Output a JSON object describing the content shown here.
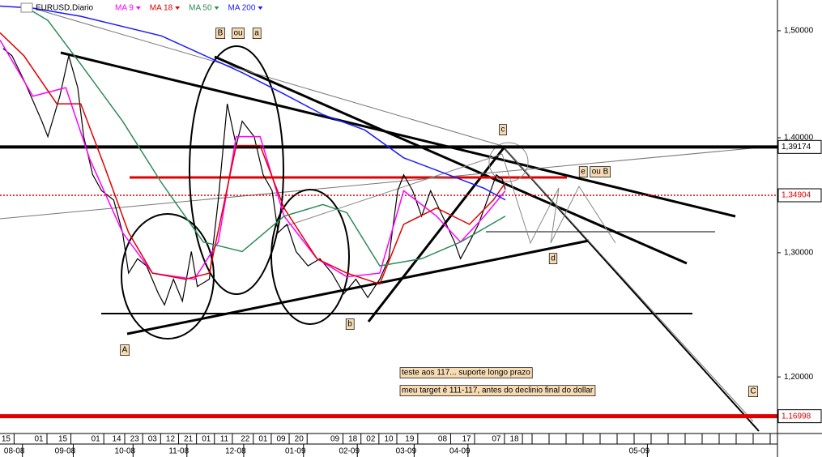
{
  "chart_data": {
    "type": "line",
    "title": "EURUSD,Diario",
    "log_scale": true,
    "xlim": [
      0,
      260
    ],
    "ylim": [
      1.157,
      1.53
    ],
    "yticks": [
      {
        "value": 1.5,
        "label": "1,50000"
      },
      {
        "value": 1.4,
        "label": "1,40000"
      },
      {
        "value": 1.3,
        "label": "1,30000"
      },
      {
        "value": 1.2,
        "label": "1,20000"
      }
    ],
    "xticks": [
      {
        "value": 2,
        "label": "15"
      },
      {
        "value": 13,
        "label": "01"
      },
      {
        "value": 21,
        "label": "15"
      },
      {
        "value": 32,
        "label": "01"
      },
      {
        "value": 39,
        "label": "14"
      },
      {
        "value": 45,
        "label": "23"
      },
      {
        "value": 51,
        "label": "03"
      },
      {
        "value": 57,
        "label": "12"
      },
      {
        "value": 63,
        "label": "21"
      },
      {
        "value": 69,
        "label": "01"
      },
      {
        "value": 75,
        "label": "11"
      },
      {
        "value": 82,
        "label": "22"
      },
      {
        "value": 88,
        "label": "01"
      },
      {
        "value": 94,
        "label": "09"
      },
      {
        "value": 100,
        "label": "20"
      },
      {
        "value": 112,
        "label": "09"
      },
      {
        "value": 118,
        "label": "18"
      },
      {
        "value": 124,
        "label": "02"
      },
      {
        "value": 130,
        "label": "10"
      },
      {
        "value": 137,
        "label": "19"
      },
      {
        "value": 148,
        "label": "08"
      },
      {
        "value": 156,
        "label": "17"
      },
      {
        "value": 166,
        "label": "07"
      },
      {
        "value": 172,
        "label": "18"
      }
    ],
    "month_ticks": [
      {
        "value": 1,
        "label": "08-08"
      },
      {
        "value": 18,
        "label": "09-08"
      },
      {
        "value": 38,
        "label": "10-08"
      },
      {
        "value": 56,
        "label": "11-08"
      },
      {
        "value": 75,
        "label": "12-08"
      },
      {
        "value": 95,
        "label": "01-09"
      },
      {
        "value": 113,
        "label": "02-09"
      },
      {
        "value": 132,
        "label": "03-09"
      },
      {
        "value": 150,
        "label": "04-09"
      },
      {
        "value": 210,
        "label": "05-09"
      }
    ],
    "series": [
      {
        "color": "#000000",
        "x": [
          1,
          4,
          8,
          14,
          16,
          20,
          23,
          26,
          28,
          31,
          34,
          38,
          41,
          43,
          46,
          49,
          53,
          55,
          58,
          61,
          64,
          66,
          70,
          73,
          76,
          79,
          81,
          85,
          88,
          91,
          93,
          96,
          99,
          103,
          107,
          111,
          115,
          119,
          123,
          127,
          130,
          133,
          135,
          138,
          141,
          144,
          148,
          152,
          154,
          157,
          160,
          162,
          166,
          168,
          169
        ],
        "values": [
          1.483,
          1.476,
          1.453,
          1.415,
          1.401,
          1.438,
          1.476,
          1.446,
          1.401,
          1.367,
          1.353,
          1.345,
          1.317,
          1.283,
          1.295,
          1.289,
          1.266,
          1.257,
          1.278,
          1.26,
          1.301,
          1.272,
          1.278,
          1.345,
          1.431,
          1.393,
          1.415,
          1.401,
          1.367,
          1.353,
          1.317,
          1.324,
          1.301,
          1.289,
          1.295,
          1.283,
          1.266,
          1.278,
          1.263,
          1.278,
          1.295,
          1.353,
          1.367,
          1.353,
          1.331,
          1.353,
          1.331,
          1.309,
          1.295,
          1.309,
          1.324,
          1.338,
          1.367,
          1.363,
          1.354
        ]
      },
      {
        "name": "MA 9",
        "color": "#ff00ff",
        "x": [
          0,
          11,
          22,
          30,
          41,
          51,
          65,
          73,
          79,
          87,
          95,
          106,
          116,
          127,
          135,
          146,
          154,
          162,
          169
        ],
        "values": [
          1.491,
          1.438,
          1.446,
          1.381,
          1.317,
          1.283,
          1.278,
          1.309,
          1.401,
          1.401,
          1.331,
          1.295,
          1.28,
          1.283,
          1.353,
          1.331,
          1.309,
          1.331,
          1.353
        ]
      },
      {
        "name": "MA 18",
        "color": "#e00000",
        "x": [
          0,
          8,
          19,
          27,
          35,
          43,
          51,
          62,
          70,
          79,
          87,
          95,
          106,
          116,
          127,
          135,
          146,
          157,
          165,
          169
        ],
        "values": [
          1.498,
          1.476,
          1.431,
          1.431,
          1.374,
          1.317,
          1.283,
          1.278,
          1.283,
          1.393,
          1.393,
          1.338,
          1.295,
          1.283,
          1.274,
          1.324,
          1.338,
          1.324,
          1.345,
          1.36
        ]
      },
      {
        "name": "MA 50",
        "color": "#2e8b57",
        "x": [
          8,
          16,
          27,
          41,
          54,
          68,
          81,
          95,
          108,
          116,
          127,
          141,
          154,
          169
        ],
        "values": [
          1.524,
          1.51,
          1.468,
          1.415,
          1.36,
          1.309,
          1.301,
          1.331,
          1.341,
          1.334,
          1.289,
          1.295,
          1.309,
          1.331
        ]
      },
      {
        "name": "MA 200",
        "color": "#1a1aff",
        "x": [
          0,
          11,
          27,
          54,
          81,
          95,
          108,
          122,
          135,
          149,
          162,
          169
        ],
        "values": [
          1.524,
          1.522,
          1.514,
          1.495,
          1.46,
          1.44,
          1.421,
          1.407,
          1.382,
          1.368,
          1.355,
          1.345
        ]
      }
    ],
    "levels": [
      {
        "value": 1.39174,
        "label": "1,39174",
        "color": "#000000",
        "style": "solid"
      },
      {
        "value": 1.34904,
        "label": "1,34904",
        "color": "#e00000",
        "style": "dotted"
      },
      {
        "value": 1.16998,
        "label": "1,16998",
        "color": "#e00000",
        "style": "solid"
      }
    ],
    "annotations": [
      "B",
      "ou",
      "a",
      "c",
      "e",
      "ou B",
      "d",
      "b",
      "A",
      "C",
      "teste aos 117... suporte longo prazo",
      "meu target é 111-117, antes do declinio final do dollar"
    ]
  }
}
